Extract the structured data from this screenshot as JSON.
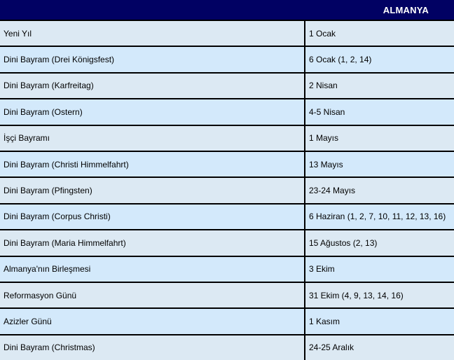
{
  "header": {
    "title": "ALMANYA"
  },
  "table": {
    "rows": [
      {
        "name": "Yeni Yıl",
        "date": "1 Ocak"
      },
      {
        "name": "Dini Bayram (Drei Königsfest)",
        "date": "6 Ocak (1, 2, 14)"
      },
      {
        "name": "Dini Bayram (Karfreitag)",
        "date": "2 Nisan"
      },
      {
        "name": "Dini Bayram (Ostern)",
        "date": "4-5 Nisan"
      },
      {
        "name": "İşçi Bayramı",
        "date": "1 Mayıs"
      },
      {
        "name": "Dini Bayram (Christi Himmelfahrt)",
        "date": "13 Mayıs"
      },
      {
        "name": "Dini Bayram (Pfingsten)",
        "date": "23-24 Mayıs"
      },
      {
        "name": "Dini Bayram (Corpus Christi)",
        "date": "6 Haziran (1, 2, 7, 10, 11, 12, 13, 16)"
      },
      {
        "name": "Dini Bayram (Maria Himmelfahrt)",
        "date": "15 Ağustos (2, 13)"
      },
      {
        "name": "Almanya'nın Birleşmesi",
        "date": "3 Ekim"
      },
      {
        "name": "Reformasyon Günü",
        "date": "31 Ekim (4, 9, 13, 14, 16)"
      },
      {
        "name": "Azizler Günü",
        "date": "1 Kasım"
      },
      {
        "name": "Dini Bayram (Christmas)",
        "date": "24-25 Aralık"
      }
    ]
  },
  "colors": {
    "header_bg": "#010163",
    "row_odd_bg": "#dce9f3",
    "row_even_bg": "#d3e9fb",
    "border": "#000000",
    "header_text": "#ffffff",
    "row_text": "#000000"
  }
}
